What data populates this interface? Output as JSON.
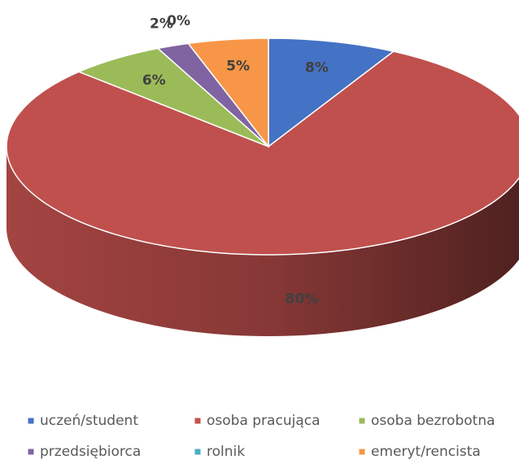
{
  "chart_data": {
    "type": "pie3d",
    "categories": [
      "uczeń/student",
      "osoba pracująca",
      "osoba bezrobotna",
      "przedsiębiorca",
      "rolnik",
      "emeryt/rencista"
    ],
    "values": [
      8,
      80,
      6,
      2,
      0,
      5
    ],
    "value_labels": [
      "8%",
      "80%",
      "6%",
      "2%",
      "0%",
      "5%"
    ],
    "colors": [
      "#4472c4",
      "#c0504d",
      "#9bbb59",
      "#8064a2",
      "#4bacc6",
      "#f79646"
    ],
    "legend": "bottom"
  }
}
